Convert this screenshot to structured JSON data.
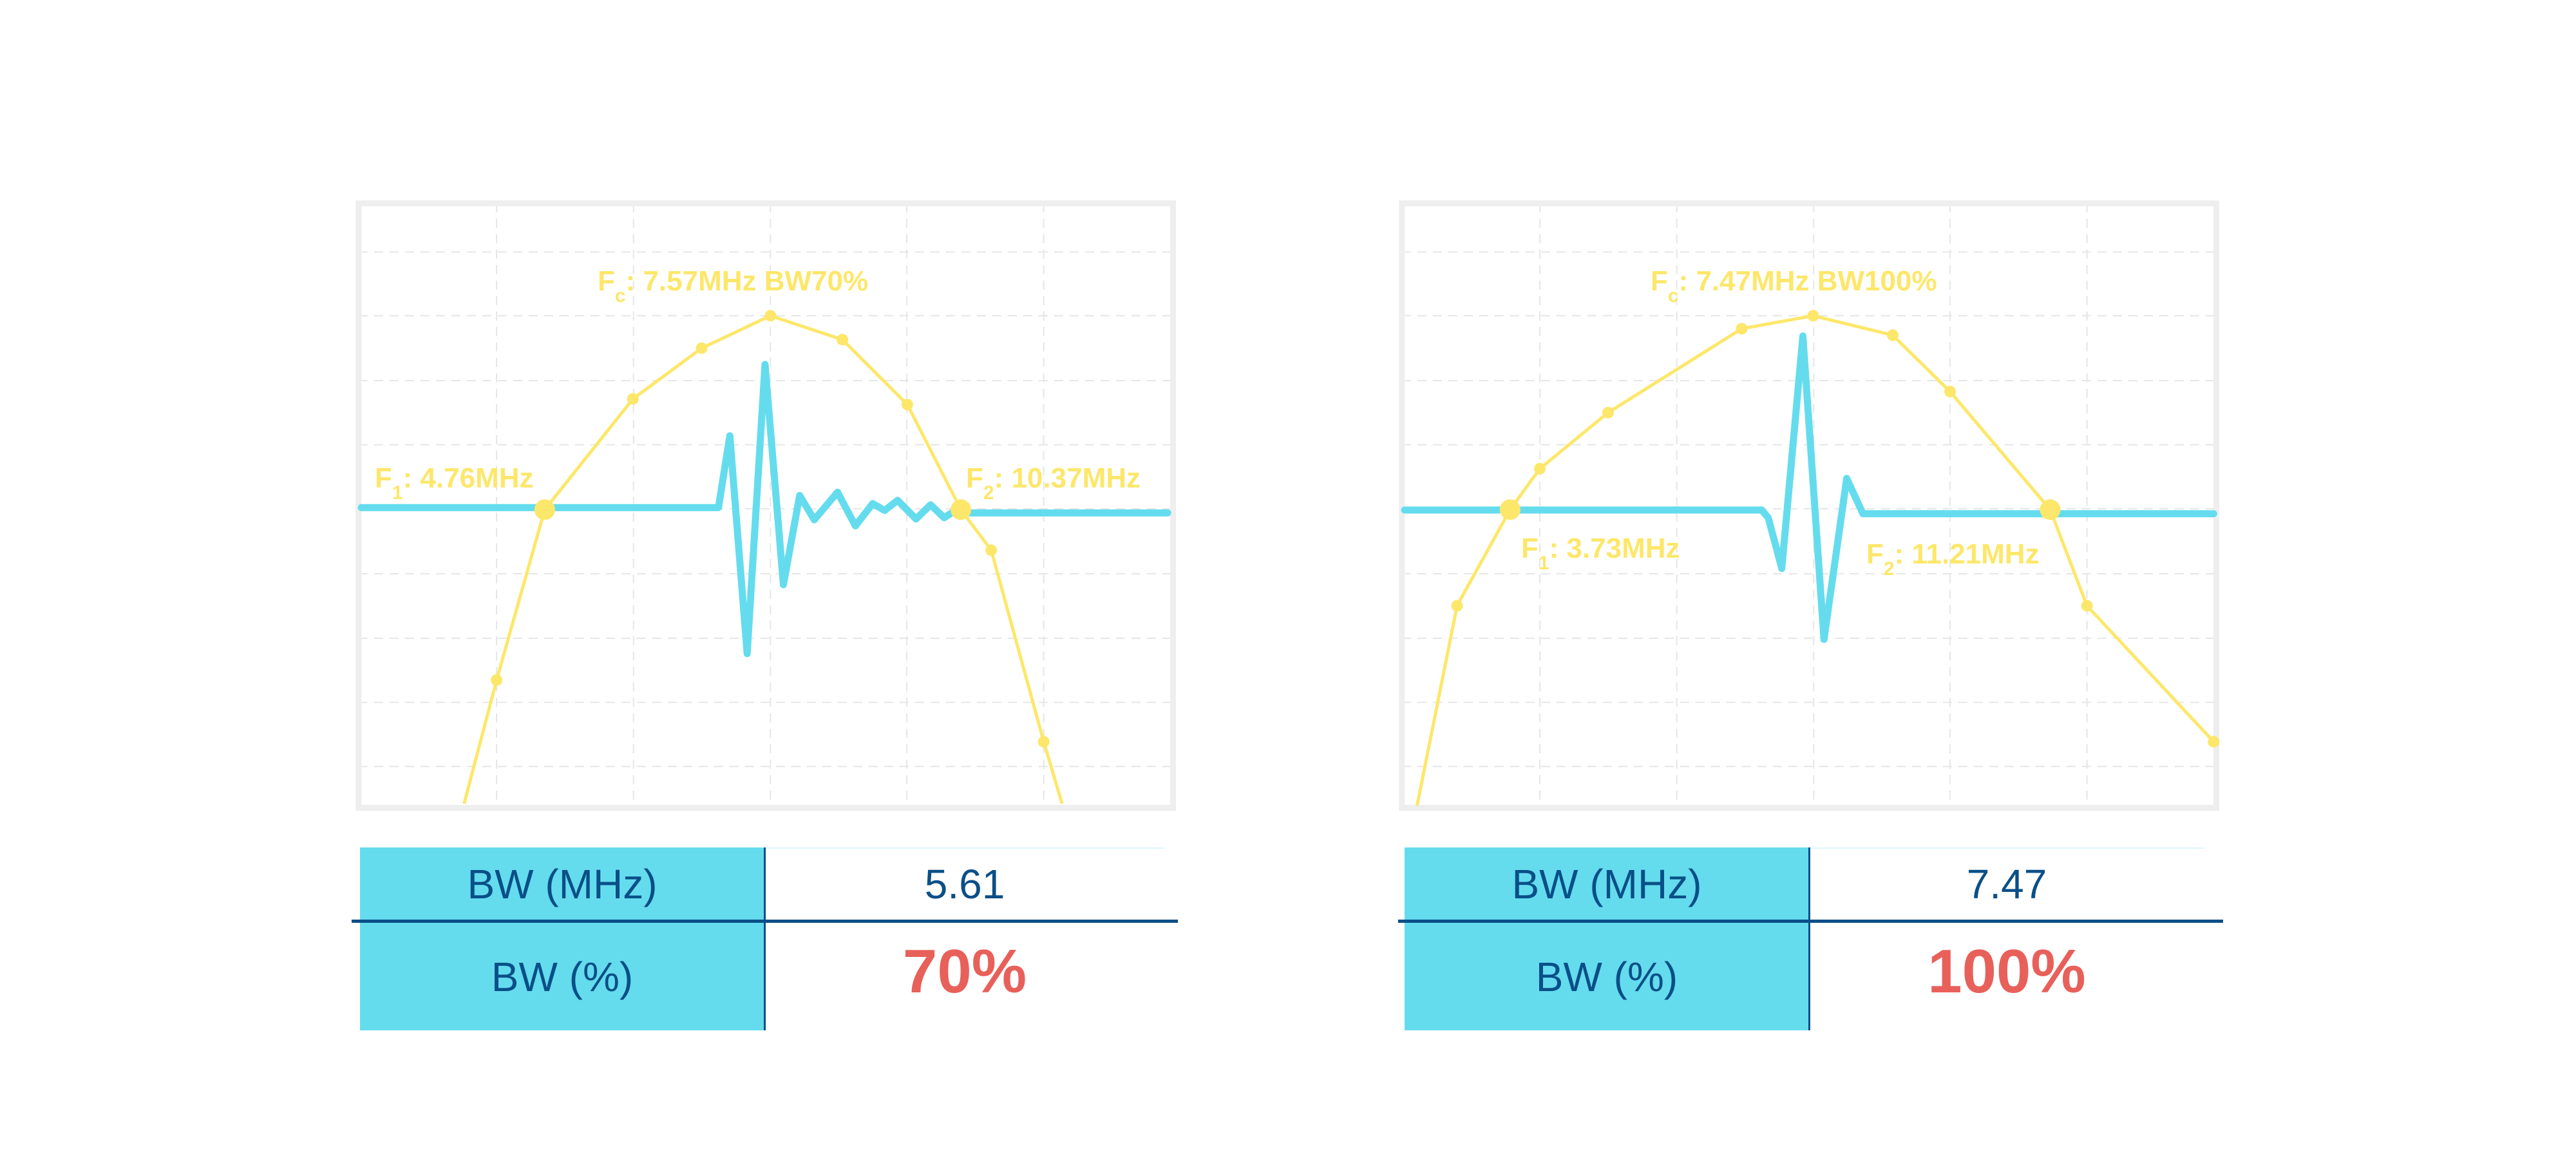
{
  "colors": {
    "spectrum": "#fde76a",
    "waveform": "#64dcee",
    "frame": "#eeeeee",
    "grid": "#e6e6e6",
    "table_key_bg": "#64dcee",
    "table_text": "#0a4f87",
    "percent_text": "#e8605a"
  },
  "chart_data": [
    {
      "type": "line",
      "annotations": {
        "fc": {
          "prefix": "F",
          "sub": "c",
          "text": ": 7.57MHz BW70%"
        },
        "f1": {
          "prefix": "F",
          "sub": "1",
          "text": ": 4.76MHz"
        },
        "f2": {
          "prefix": "F",
          "sub": "2",
          "text": ": 10.37MHz"
        }
      },
      "grid": true
    },
    {
      "type": "line",
      "annotations": {
        "fc": {
          "prefix": "F",
          "sub": "c",
          "text": ": 7.47MHz BW100%"
        },
        "f1": {
          "prefix": "F",
          "sub": "1",
          "text": ": 3.73MHz"
        },
        "f2": {
          "prefix": "F",
          "sub": "2",
          "text": ": 11.21MHz"
        }
      },
      "grid": true
    }
  ],
  "tables": [
    {
      "rows": [
        {
          "key": "BW (MHz)",
          "value": "5.61"
        },
        {
          "key": "BW (%)",
          "value": "70%"
        }
      ]
    },
    {
      "rows": [
        {
          "key": "BW (MHz)",
          "value": "7.47"
        },
        {
          "key": "BW (%)",
          "value": "100%"
        }
      ]
    }
  ]
}
